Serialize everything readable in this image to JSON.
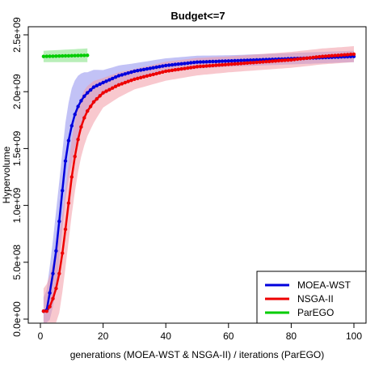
{
  "chart_data": {
    "type": "line",
    "title": "Budget<=7",
    "xlabel": "generations (MOEA-WST & NSGA-II) / iterations (ParEGO)",
    "ylabel": "Hypervolume",
    "xlim": [
      0,
      100
    ],
    "ylim": [
      0,
      2500000000
    ],
    "x_ticks": [
      0,
      20,
      40,
      60,
      80,
      100
    ],
    "x_tick_labels": [
      "0",
      "20",
      "40",
      "60",
      "80",
      "100"
    ],
    "y_ticks": [
      0,
      500000000,
      1000000000,
      1500000000,
      2000000000,
      2500000000
    ],
    "y_tick_labels": [
      "0.0e+00",
      "5.0e+08",
      "1.0e+09",
      "1.5e+09",
      "2.0e+09",
      "2.5e+09"
    ],
    "legend": {
      "position": "bottom-right",
      "entries": [
        "MOEA-WST",
        "NSGA-II",
        "ParEGO"
      ]
    },
    "colors": {
      "MOEA-WST": "#0000dd",
      "NSGA-II": "#ee0000",
      "ParEGO": "#00cc00"
    },
    "band_colors": {
      "MOEA-WST": "#8f8fee",
      "NSGA-II": "#f29aa6",
      "ParEGO": "#7fe07f"
    },
    "series": [
      {
        "name": "MOEA-WST",
        "x_range": [
          1,
          100
        ],
        "anchors_x": [
          1,
          2,
          3,
          4,
          5,
          6,
          7,
          8,
          9,
          10,
          11,
          12,
          13,
          14,
          15,
          17,
          20,
          25,
          30,
          40,
          50,
          60,
          70,
          80,
          90,
          100
        ],
        "anchors_y": [
          70000000,
          80000000,
          230000000,
          400000000,
          600000000,
          860000000,
          1130000000,
          1390000000,
          1570000000,
          1700000000,
          1800000000,
          1870000000,
          1920000000,
          1960000000,
          1990000000,
          2040000000,
          2080000000,
          2140000000,
          2180000000,
          2230000000,
          2260000000,
          2270000000,
          2280000000,
          2290000000,
          2300000000,
          2310000000
        ],
        "band_half_width_anchors_x": [
          1,
          5,
          10,
          15,
          20,
          30,
          60,
          100
        ],
        "band_half_width_anchors_y": [
          120000000,
          350000000,
          330000000,
          180000000,
          110000000,
          70000000,
          50000000,
          50000000
        ]
      },
      {
        "name": "NSGA-II",
        "x_range": [
          1,
          100
        ],
        "anchors_x": [
          1,
          2,
          3,
          4,
          5,
          6,
          7,
          8,
          9,
          10,
          11,
          12,
          13,
          14,
          15,
          17,
          20,
          25,
          30,
          40,
          50,
          60,
          70,
          80,
          90,
          100
        ],
        "anchors_y": [
          70000000,
          70000000,
          110000000,
          180000000,
          270000000,
          400000000,
          580000000,
          790000000,
          1020000000,
          1250000000,
          1430000000,
          1580000000,
          1690000000,
          1770000000,
          1830000000,
          1910000000,
          1990000000,
          2060000000,
          2110000000,
          2180000000,
          2220000000,
          2240000000,
          2260000000,
          2280000000,
          2310000000,
          2330000000
        ],
        "band_half_width_anchors_x": [
          1,
          5,
          10,
          15,
          20,
          30,
          60,
          100
        ],
        "band_half_width_anchors_y": [
          200000000,
          350000000,
          330000000,
          220000000,
          130000000,
          90000000,
          70000000,
          70000000
        ]
      },
      {
        "name": "ParEGO",
        "x_range": [
          1,
          15
        ],
        "anchors_x": [
          1,
          15
        ],
        "anchors_y": [
          2310000000,
          2320000000
        ],
        "band_half_width_anchors_x": [
          1,
          15
        ],
        "band_half_width_anchors_y": [
          50000000,
          60000000
        ]
      }
    ]
  }
}
